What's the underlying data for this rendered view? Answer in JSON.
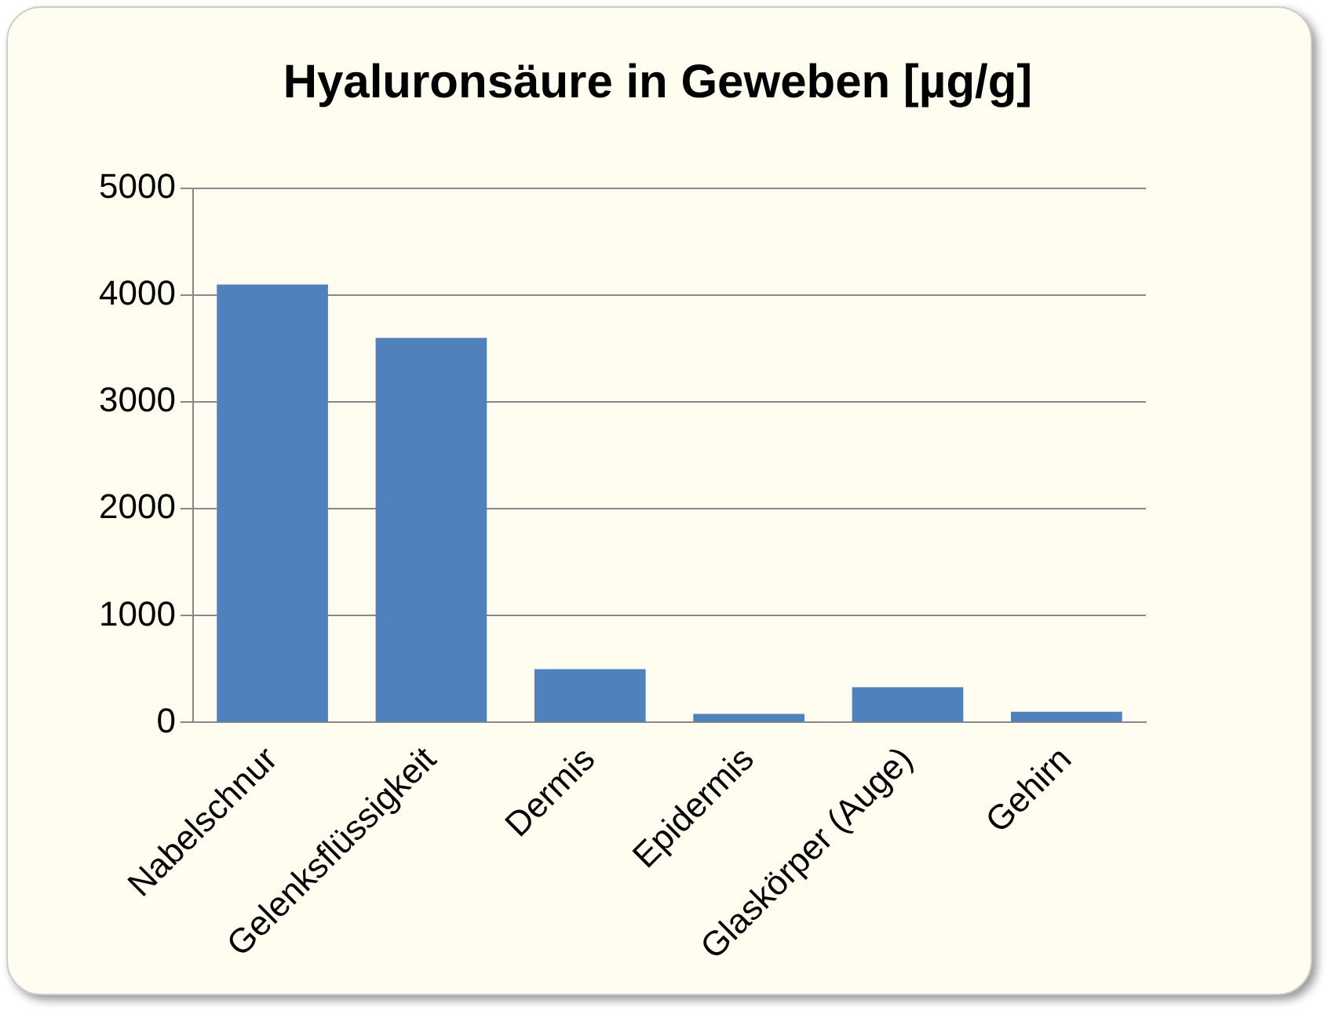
{
  "chart_data": {
    "type": "bar",
    "title": "Hyaluronsäure in Geweben [µg/g]",
    "categories": [
      "Nabelschnur",
      "Gelenksflüssigkeit",
      "Dermis",
      "Epidermis",
      "Glaskörper (Auge)",
      "Gehirn"
    ],
    "values": [
      4100,
      3600,
      500,
      80,
      330,
      100
    ],
    "color": "#4f81bd",
    "ylim": [
      0,
      5000
    ],
    "yticks": [
      0,
      1000,
      2000,
      3000,
      4000,
      5000
    ],
    "grid": "y",
    "legend": false
  }
}
